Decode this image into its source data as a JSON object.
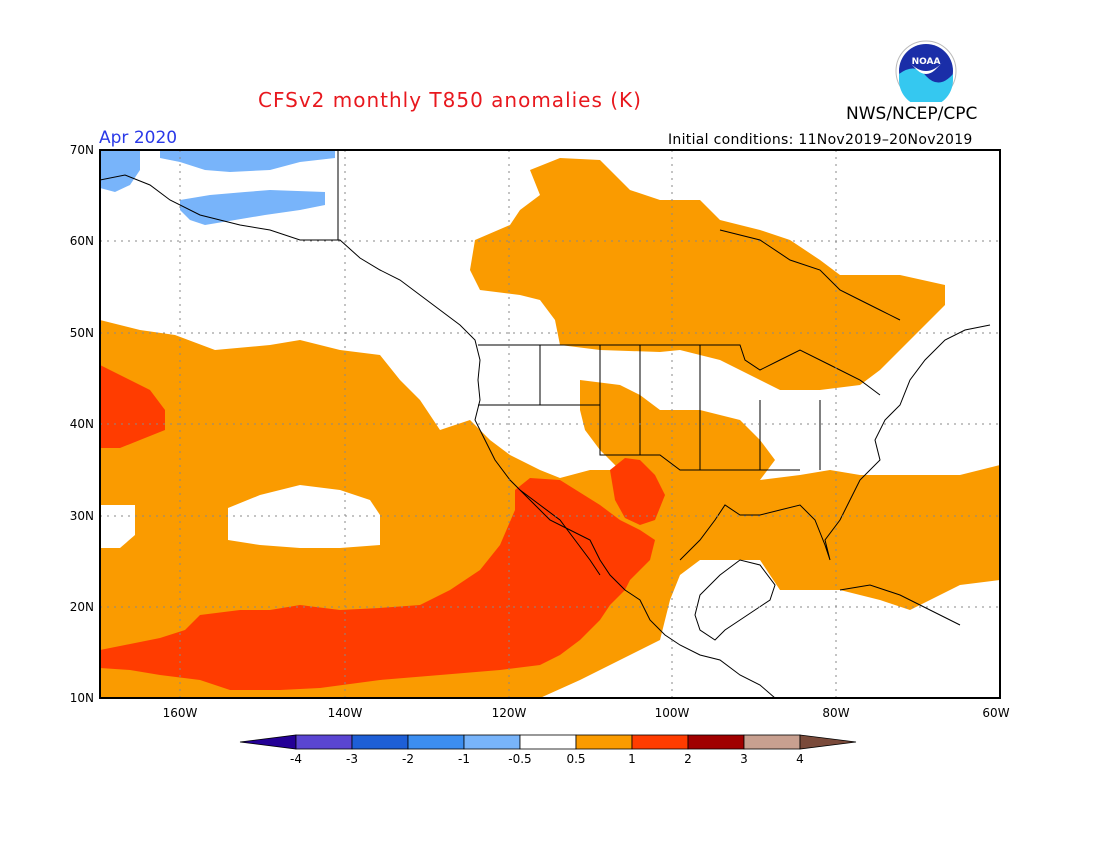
{
  "header": {
    "title": "CFSv2 monthly T850 anomalies (K)",
    "agency": "NWS/NCEP/CPC",
    "valid_month": "Apr 2020",
    "initial_conditions": "Initial conditions: 11Nov2019–20Nov2019",
    "logo_text": "NOAA"
  },
  "map": {
    "lat_labels": [
      "70N",
      "60N",
      "50N",
      "40N",
      "30N",
      "20N",
      "10N"
    ],
    "lon_labels": [
      "160W",
      "140W",
      "120W",
      "100W",
      "80W",
      "60W"
    ],
    "colors": {
      "neg_1": "#78b4fa",
      "pos_0_5_1": "#fa9b00",
      "pos_1_2": "#ff3c00",
      "land_outline": "#000000",
      "grid": "#888888"
    }
  },
  "colorbar": {
    "tick_labels": [
      "-4",
      "-3",
      "-2",
      "-1",
      "-0.5",
      "0.5",
      "1",
      "2",
      "3",
      "4"
    ],
    "colors": [
      "#240096",
      "#5a45d2",
      "#1e5fd6",
      "#3c8ef0",
      "#78b4fa",
      "#ffffff",
      "#fa9b00",
      "#ff3c00",
      "#a00000",
      "#c8a090",
      "#7a4a3a"
    ]
  }
}
